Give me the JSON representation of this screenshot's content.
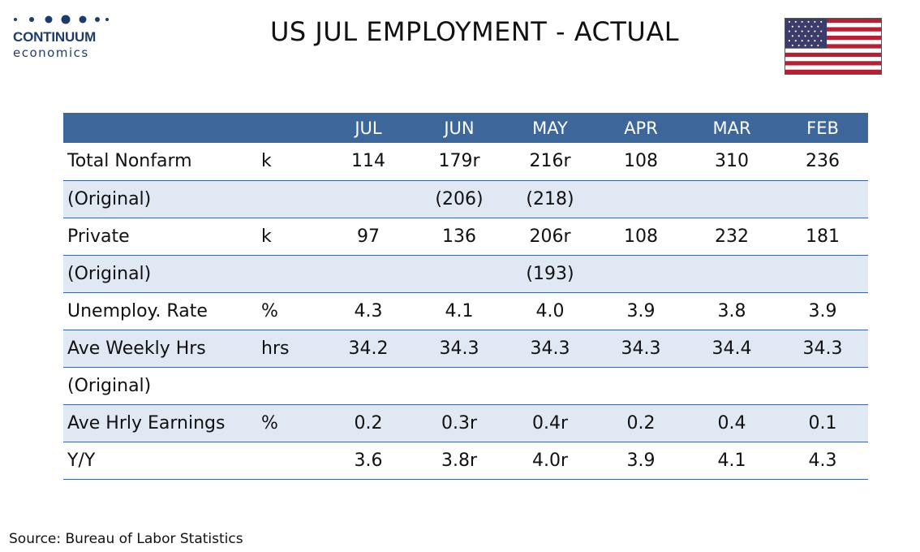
{
  "logo": {
    "name": "CONTINUUM",
    "sub": "economics"
  },
  "title": "US JUL EMPLOYMENT - ACTUAL",
  "flag": {
    "icon": "us-flag-icon",
    "colors": {
      "red": "#b22234",
      "white": "#ffffff",
      "blue": "#3c3b6e"
    }
  },
  "colors": {
    "header_bg": "#3d679b",
    "stripe_bg": "#dfe8f3",
    "brand": "#1f3b6b"
  },
  "chart_data": {
    "type": "table",
    "columns": [
      "JUL",
      "JUN",
      "MAY",
      "APR",
      "MAR",
      "FEB"
    ],
    "rows": [
      {
        "label": "Total Nonfarm",
        "unit": "k",
        "values": [
          "114",
          "179r",
          "216r",
          "108",
          "310",
          "236"
        ]
      },
      {
        "label": "(Original)",
        "unit": "",
        "values": [
          "",
          "(206)",
          "(218)",
          "",
          "",
          ""
        ]
      },
      {
        "label": "Private",
        "unit": "k",
        "values": [
          "97",
          "136",
          "206r",
          "108",
          "232",
          "181"
        ]
      },
      {
        "label": "(Original)",
        "unit": "",
        "values": [
          "",
          "",
          "(193)",
          "",
          "",
          ""
        ]
      },
      {
        "label": "Unemploy. Rate",
        "unit": "%",
        "values": [
          "4.3",
          "4.1",
          "4.0",
          "3.9",
          "3.8",
          "3.9"
        ]
      },
      {
        "label": "Ave Weekly Hrs",
        "unit": "hrs",
        "values": [
          "34.2",
          "34.3",
          "34.3",
          "34.3",
          "34.4",
          "34.3"
        ]
      },
      {
        "label": "(Original)",
        "unit": "",
        "values": [
          "",
          "",
          "",
          "",
          "",
          ""
        ]
      },
      {
        "label": "Ave Hrly Earnings",
        "unit": "%",
        "values": [
          "0.2",
          "0.3r",
          "0.4r",
          "0.2",
          "0.4",
          "0.1"
        ]
      },
      {
        "label": "Y/Y",
        "unit": "",
        "values": [
          "3.6",
          "3.8r",
          "4.0r",
          "3.9",
          "4.1",
          "4.3"
        ]
      }
    ]
  },
  "source": "Source: Bureau of Labor Statistics"
}
